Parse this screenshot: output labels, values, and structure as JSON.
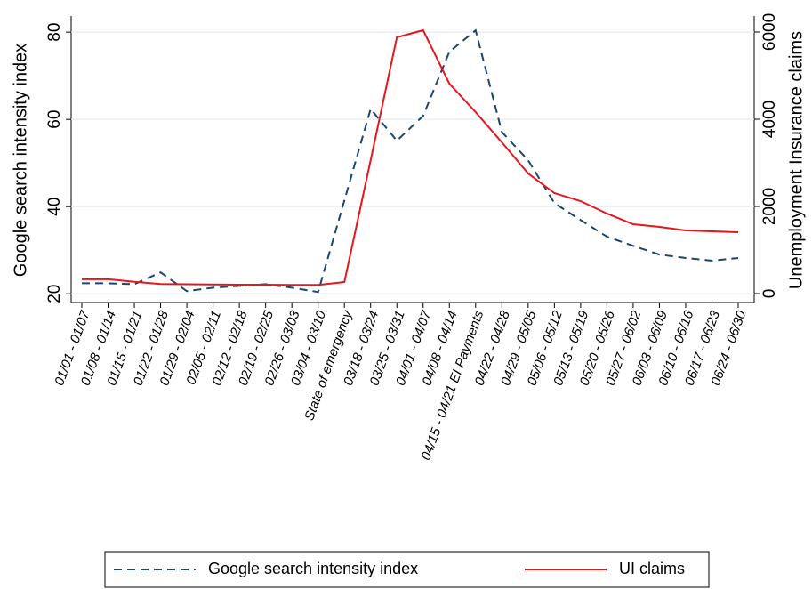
{
  "chart_data": {
    "type": "line",
    "categories": [
      "01/01 - 01/07",
      "01/08 - 01/14",
      "01/15 - 01/21",
      "01/22 - 01/28",
      "01/29 - 02/04",
      "02/05 - 02/11",
      "02/12 - 02/18",
      "02/19 - 02/25",
      "02/26 - 03/03",
      "03/04 - 03/10",
      "State of emergency",
      "03/18 - 03/24",
      "03/25 - 03/31",
      "04/01 - 04/07",
      "04/08 - 04/14",
      "04/15 - 04/21 EI Payments",
      "04/22 - 04/28",
      "04/29 - 05/05",
      "05/06 - 05/12",
      "05/13 - 05/19",
      "05/20 - 05/26",
      "05/27 - 06/02",
      "06/03 - 06/09",
      "06/10 - 06/16",
      "06/17 - 06/23",
      "06/24 - 06/30"
    ],
    "series": [
      {
        "name": "Google search intensity index",
        "color": "#1a476f",
        "dash": true,
        "values": [
          22.4,
          22.4,
          22.2,
          24.9,
          20.6,
          21.4,
          21.8,
          22.2,
          21.4,
          20.4,
          41.4,
          62.4,
          55.1,
          60.8,
          75.5,
          80.4,
          57.1,
          50.6,
          40.8,
          36.9,
          33.1,
          31.0,
          29.0,
          28.2,
          27.6,
          28.2
        ]
      },
      {
        "name": "UI claims",
        "color": "#e8151b",
        "axis": "y2",
        "values": [
          330,
          330,
          270,
          220,
          215,
          210,
          205,
          205,
          200,
          200,
          265,
          3060,
          5878,
          6041,
          4816,
          4163,
          3469,
          2755,
          2306,
          2122,
          1837,
          1592,
          1531,
          1449,
          1429,
          1408
        ]
      }
    ],
    "ylabel": "Google search intensity index",
    "y2label": "Unemployment Insurance claims",
    "ylim": [
      18,
      83.7
    ],
    "yticks": [
      20,
      40,
      60,
      80
    ],
    "y2lim": [
      -204,
      6367
    ],
    "y2ticks": [
      0,
      2000,
      4000,
      6000
    ],
    "grid": true
  }
}
